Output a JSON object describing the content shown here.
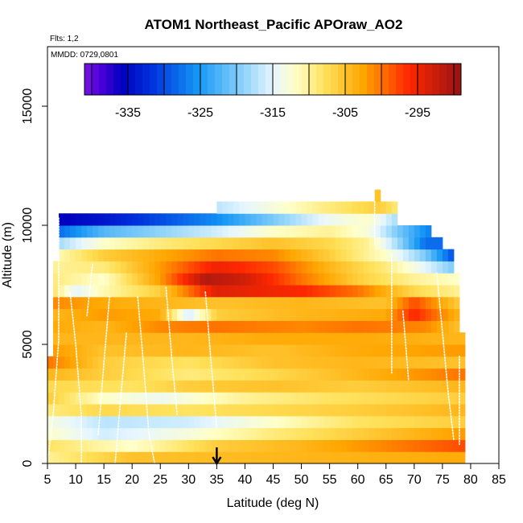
{
  "chart_data": {
    "type": "heatmap",
    "title": "ATOM1 Northeast_Pacific APOraw_AO2",
    "flights_label": "Flts: 1,2",
    "dates_label": "MMDD: 0729,0801",
    "xlabel": "Latitude (deg N)",
    "ylabel": "Altitude (m)",
    "xlim": [
      5,
      85
    ],
    "ylim": [
      0,
      17500
    ],
    "xticks": [
      5,
      10,
      15,
      20,
      25,
      30,
      35,
      40,
      45,
      50,
      55,
      60,
      65,
      70,
      75,
      80,
      85
    ],
    "yticks": [
      0,
      5000,
      10000,
      15000
    ],
    "colorbar": {
      "ticks": [
        -335,
        -325,
        -315,
        -305,
        -295
      ],
      "range": [
        -341,
        -289
      ],
      "n_steps": 52
    },
    "grid": false,
    "arrow_marker": {
      "x": 35
    },
    "cell_height_m": 500,
    "x_range_cells": [
      5,
      79
    ],
    "layers": [
      {
        "y": 0,
        "x1": 5,
        "x2": 79,
        "values": [
          [
            5,
            -310
          ],
          [
            20,
            -305
          ],
          [
            50,
            -304
          ],
          [
            79,
            -303
          ]
        ]
      },
      {
        "y": 500,
        "x1": 5,
        "x2": 79,
        "values": [
          [
            5,
            -308
          ],
          [
            20,
            -312
          ],
          [
            35,
            -306
          ],
          [
            50,
            -304
          ],
          [
            79,
            -298
          ]
        ]
      },
      {
        "y": 1000,
        "x1": 5,
        "x2": 79,
        "values": [
          [
            5,
            -312
          ],
          [
            15,
            -316
          ],
          [
            30,
            -313
          ],
          [
            45,
            -309
          ],
          [
            60,
            -306
          ],
          [
            79,
            -302
          ]
        ]
      },
      {
        "y": 1500,
        "x1": 5,
        "x2": 79,
        "values": [
          [
            5,
            -313
          ],
          [
            15,
            -317
          ],
          [
            30,
            -316
          ],
          [
            45,
            -312
          ],
          [
            60,
            -308
          ],
          [
            79,
            -306
          ]
        ]
      },
      {
        "y": 2000,
        "x1": 5,
        "x2": 79,
        "values": [
          [
            5,
            -309
          ],
          [
            15,
            -307
          ],
          [
            30,
            -308
          ],
          [
            45,
            -307
          ],
          [
            60,
            -306
          ],
          [
            79,
            -304
          ]
        ]
      },
      {
        "y": 2500,
        "x1": 5,
        "x2": 79,
        "values": [
          [
            5,
            -306
          ],
          [
            15,
            -312
          ],
          [
            25,
            -314
          ],
          [
            40,
            -310
          ],
          [
            55,
            -308
          ],
          [
            79,
            -306
          ]
        ]
      },
      {
        "y": 3000,
        "x1": 5,
        "x2": 79,
        "values": [
          [
            5,
            -307
          ],
          [
            20,
            -308
          ],
          [
            30,
            -306
          ],
          [
            45,
            -305
          ],
          [
            60,
            -306
          ],
          [
            79,
            -304
          ]
        ]
      },
      {
        "y": 3500,
        "x1": 5,
        "x2": 79,
        "values": [
          [
            5,
            -304
          ],
          [
            15,
            -306
          ],
          [
            30,
            -309
          ],
          [
            45,
            -307
          ],
          [
            60,
            -304
          ],
          [
            79,
            -300
          ]
        ]
      },
      {
        "y": 4000,
        "x1": 5,
        "x2": 79,
        "values": [
          [
            5,
            -300
          ],
          [
            15,
            -306
          ],
          [
            30,
            -308
          ],
          [
            45,
            -305
          ],
          [
            60,
            -304
          ],
          [
            79,
            -305
          ]
        ]
      },
      {
        "y": 4500,
        "x1": 6,
        "x2": 79,
        "values": [
          [
            6,
            -302
          ],
          [
            15,
            -305
          ],
          [
            30,
            -304
          ],
          [
            45,
            -305
          ],
          [
            60,
            -303
          ],
          [
            79,
            -302
          ]
        ]
      },
      {
        "y": 5000,
        "x1": 6,
        "x2": 79,
        "values": [
          [
            6,
            -304
          ],
          [
            15,
            -304
          ],
          [
            30,
            -304
          ],
          [
            45,
            -303
          ],
          [
            60,
            -303
          ],
          [
            79,
            -304
          ]
        ]
      },
      {
        "y": 5500,
        "x1": 6,
        "x2": 78,
        "values": [
          [
            6,
            -303
          ],
          [
            15,
            -304
          ],
          [
            25,
            -301
          ],
          [
            35,
            -300
          ],
          [
            50,
            -301
          ],
          [
            60,
            -300
          ],
          [
            72,
            -301
          ],
          [
            78,
            -305
          ]
        ]
      },
      {
        "y": 6000,
        "x1": 6,
        "x2": 78,
        "values": [
          [
            6,
            -304
          ],
          [
            15,
            -302
          ],
          [
            25,
            -303
          ],
          [
            30,
            -316
          ],
          [
            35,
            -306
          ],
          [
            50,
            -304
          ],
          [
            65,
            -303
          ],
          [
            70,
            -296
          ],
          [
            78,
            -304
          ]
        ]
      },
      {
        "y": 6500,
        "x1": 6,
        "x2": 78,
        "values": [
          [
            6,
            -301
          ],
          [
            15,
            -303
          ],
          [
            25,
            -304
          ],
          [
            35,
            -305
          ],
          [
            50,
            -304
          ],
          [
            65,
            -305
          ],
          [
            70,
            -298
          ],
          [
            78,
            -306
          ]
        ]
      },
      {
        "y": 7000,
        "x1": 6,
        "x2": 78,
        "values": [
          [
            6,
            -308
          ],
          [
            10,
            -315
          ],
          [
            15,
            -311
          ],
          [
            25,
            -306
          ],
          [
            35,
            -294
          ],
          [
            50,
            -296
          ],
          [
            60,
            -300
          ],
          [
            70,
            -307
          ],
          [
            78,
            -310
          ]
        ]
      },
      {
        "y": 7500,
        "x1": 6,
        "x2": 78,
        "values": [
          [
            6,
            -309
          ],
          [
            15,
            -312
          ],
          [
            25,
            -302
          ],
          [
            33,
            -291
          ],
          [
            40,
            -293
          ],
          [
            50,
            -300
          ],
          [
            60,
            -306
          ],
          [
            70,
            -310
          ],
          [
            78,
            -312
          ]
        ]
      },
      {
        "y": 8000,
        "x1": 6,
        "x2": 77,
        "values": [
          [
            6,
            -310
          ],
          [
            15,
            -309
          ],
          [
            25,
            -302
          ],
          [
            35,
            -295
          ],
          [
            45,
            -298
          ],
          [
            55,
            -304
          ],
          [
            65,
            -309
          ],
          [
            72,
            -315
          ],
          [
            77,
            -320
          ]
        ]
      },
      {
        "y": 8500,
        "x1": 7,
        "x2": 77,
        "values": [
          [
            7,
            -311
          ],
          [
            15,
            -306
          ],
          [
            25,
            -303
          ],
          [
            35,
            -300
          ],
          [
            45,
            -301
          ],
          [
            55,
            -306
          ],
          [
            65,
            -312
          ],
          [
            72,
            -320
          ],
          [
            77,
            -330
          ]
        ]
      },
      {
        "y": 9000,
        "x1": 7,
        "x2": 75,
        "values": [
          [
            7,
            -318
          ],
          [
            15,
            -312
          ],
          [
            25,
            -309
          ],
          [
            35,
            -307
          ],
          [
            45,
            -305
          ],
          [
            55,
            -307
          ],
          [
            62,
            -310
          ],
          [
            67,
            -318
          ],
          [
            72,
            -328
          ]
        ]
      },
      {
        "y": 9500,
        "x1": 7,
        "x2": 73,
        "values": [
          [
            7,
            -328
          ],
          [
            15,
            -322
          ],
          [
            25,
            -319
          ],
          [
            35,
            -316
          ],
          [
            45,
            -312
          ],
          [
            55,
            -310
          ],
          [
            62,
            -313
          ],
          [
            67,
            -320
          ],
          [
            73,
            -327
          ]
        ]
      },
      {
        "y": 10000,
        "x1": 7,
        "x2": 67,
        "values": [
          [
            7,
            -336
          ],
          [
            15,
            -334
          ],
          [
            25,
            -330
          ],
          [
            35,
            -326
          ],
          [
            45,
            -320
          ],
          [
            55,
            -314
          ],
          [
            62,
            -312
          ],
          [
            67,
            -318
          ]
        ]
      },
      {
        "y": 10500,
        "x1": 35,
        "x2": 67,
        "values": [
          [
            35,
            -317
          ],
          [
            45,
            -313
          ],
          [
            55,
            -309
          ],
          [
            64,
            -306
          ],
          [
            67,
            -309
          ]
        ]
      },
      {
        "y": 11000,
        "x1": 63,
        "x2": 64,
        "values": [
          [
            63,
            -305
          ]
        ]
      }
    ],
    "flight_tracks": [
      [
        [
          5,
          0
        ],
        [
          6,
          2000
        ],
        [
          7,
          5200
        ],
        [
          7,
          10300
        ]
      ],
      [
        [
          9,
          7200
        ],
        [
          10,
          5000
        ],
        [
          11,
          2000
        ],
        [
          11,
          0
        ]
      ],
      [
        [
          12,
          6200
        ],
        [
          13,
          8400
        ]
      ],
      [
        [
          14,
          1200
        ],
        [
          15,
          4200
        ],
        [
          16,
          7000
        ]
      ],
      [
        [
          17,
          0
        ],
        [
          18,
          2800
        ],
        [
          19,
          5500
        ]
      ],
      [
        [
          21,
          7000
        ],
        [
          22,
          4200
        ],
        [
          23,
          1200
        ],
        [
          24,
          0
        ]
      ],
      [
        [
          26,
          7400
        ],
        [
          27,
          4500
        ],
        [
          28,
          2000
        ]
      ],
      [
        [
          33,
          7200
        ],
        [
          34,
          4200
        ],
        [
          35,
          1500
        ]
      ],
      [
        [
          63,
          11000
        ],
        [
          63,
          9200
        ]
      ],
      [
        [
          66,
          8800
        ],
        [
          66,
          6000
        ],
        [
          66,
          3800
        ]
      ],
      [
        [
          68,
          6400
        ],
        [
          69,
          3500
        ]
      ],
      [
        [
          74,
          8000
        ],
        [
          75,
          5500
        ],
        [
          76,
          3000
        ],
        [
          77,
          1000
        ]
      ],
      [
        [
          78,
          4500
        ],
        [
          78,
          800
        ]
      ]
    ]
  }
}
